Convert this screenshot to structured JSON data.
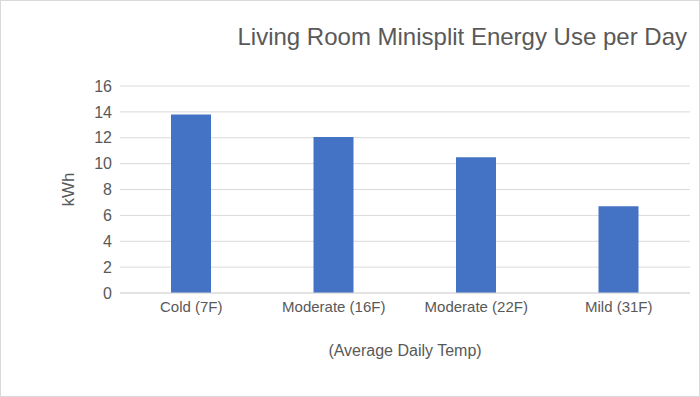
{
  "chart_data": {
    "type": "bar",
    "title": "Living Room Minisplit Energy Use per Day",
    "x_label": "(Average Daily Temp)",
    "y_label": "kWh",
    "categories": [
      "Cold (7F)",
      "Moderate (16F)",
      "Moderate (22F)",
      "Mild (31F)"
    ],
    "values": [
      13.8,
      12.05,
      10.5,
      6.7
    ],
    "color": "#4472c4",
    "ylim": [
      0,
      16
    ],
    "yticks": [
      0,
      2,
      4,
      6,
      8,
      10,
      12,
      14,
      16
    ],
    "grid": true
  }
}
